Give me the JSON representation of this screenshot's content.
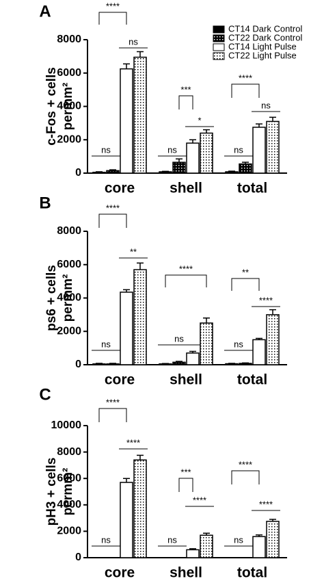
{
  "chart_data": [
    {
      "type": "bar",
      "panel_label": "A",
      "ylabel": [
        "c-Fos + cells",
        "permm²"
      ],
      "categories": [
        "core",
        "shell",
        "total"
      ],
      "ylim": [
        0,
        8000
      ],
      "yticks": [
        0,
        2000,
        4000,
        6000,
        8000
      ],
      "legend": "upper right",
      "series": [
        {
          "name": "CT14 Dark Control",
          "color": "#000000",
          "pattern": "solid",
          "values": [
            50,
            80,
            80
          ],
          "errors": [
            30,
            30,
            40
          ]
        },
        {
          "name": "CT22 Dark Control",
          "color": "#000000",
          "pattern": "dots",
          "values": [
            150,
            650,
            550
          ],
          "errors": [
            50,
            200,
            100
          ]
        },
        {
          "name": "CT14 Light Pulse",
          "color": "#ffffff",
          "pattern": "solid",
          "values": [
            6250,
            1800,
            2750
          ],
          "errors": [
            300,
            200,
            200
          ]
        },
        {
          "name": "CT22 Light Pulse",
          "color": "#ffffff",
          "pattern": "dots",
          "values": [
            6950,
            2400,
            3100
          ],
          "errors": [
            330,
            200,
            250
          ]
        }
      ],
      "annotations": [
        "ns",
        "****",
        "ns",
        "ns",
        "***",
        "*",
        "ns",
        "****",
        "ns"
      ]
    },
    {
      "type": "bar",
      "panel_label": "B",
      "ylabel": [
        "ps6 + cells",
        "permm²"
      ],
      "categories": [
        "core",
        "shell",
        "total"
      ],
      "ylim": [
        0,
        8000
      ],
      "yticks": [
        0,
        2000,
        4000,
        6000,
        8000
      ],
      "series": [
        {
          "color": "#000000",
          "pattern": "solid",
          "values": [
            50,
            50,
            60
          ],
          "errors": [
            30,
            20,
            20
          ]
        },
        {
          "color": "#000000",
          "pattern": "dots",
          "values": [
            50,
            150,
            80
          ],
          "errors": [
            30,
            50,
            30
          ]
        },
        {
          "color": "#ffffff",
          "pattern": "solid",
          "values": [
            4350,
            700,
            1500
          ],
          "errors": [
            150,
            100,
            80
          ]
        },
        {
          "color": "#ffffff",
          "pattern": "dots",
          "values": [
            5700,
            2500,
            3000
          ],
          "errors": [
            400,
            300,
            300
          ]
        }
      ],
      "annotations": [
        "ns",
        "****",
        "**",
        "ns",
        "****",
        "ns",
        "**",
        "****"
      ]
    },
    {
      "type": "bar",
      "panel_label": "C",
      "ylabel": [
        "pH3 + cells",
        "permm²"
      ],
      "categories": [
        "core",
        "shell",
        "total"
      ],
      "ylim": [
        0,
        10000
      ],
      "yticks": [
        0,
        2000,
        4000,
        6000,
        8000,
        10000
      ],
      "series": [
        {
          "color": "#000000",
          "pattern": "solid",
          "values": [
            0,
            0,
            0
          ],
          "errors": [
            0,
            0,
            0
          ]
        },
        {
          "color": "#000000",
          "pattern": "dots",
          "values": [
            0,
            0,
            0
          ],
          "errors": [
            0,
            0,
            0
          ]
        },
        {
          "color": "#ffffff",
          "pattern": "solid",
          "values": [
            5700,
            600,
            1600
          ],
          "errors": [
            300,
            80,
            120
          ]
        },
        {
          "color": "#ffffff",
          "pattern": "dots",
          "values": [
            7400,
            1700,
            2750
          ],
          "errors": [
            350,
            150,
            150
          ]
        }
      ],
      "annotations": [
        "ns",
        "****",
        "****",
        "ns",
        "***",
        "****",
        "ns",
        "****",
        "****"
      ]
    }
  ]
}
